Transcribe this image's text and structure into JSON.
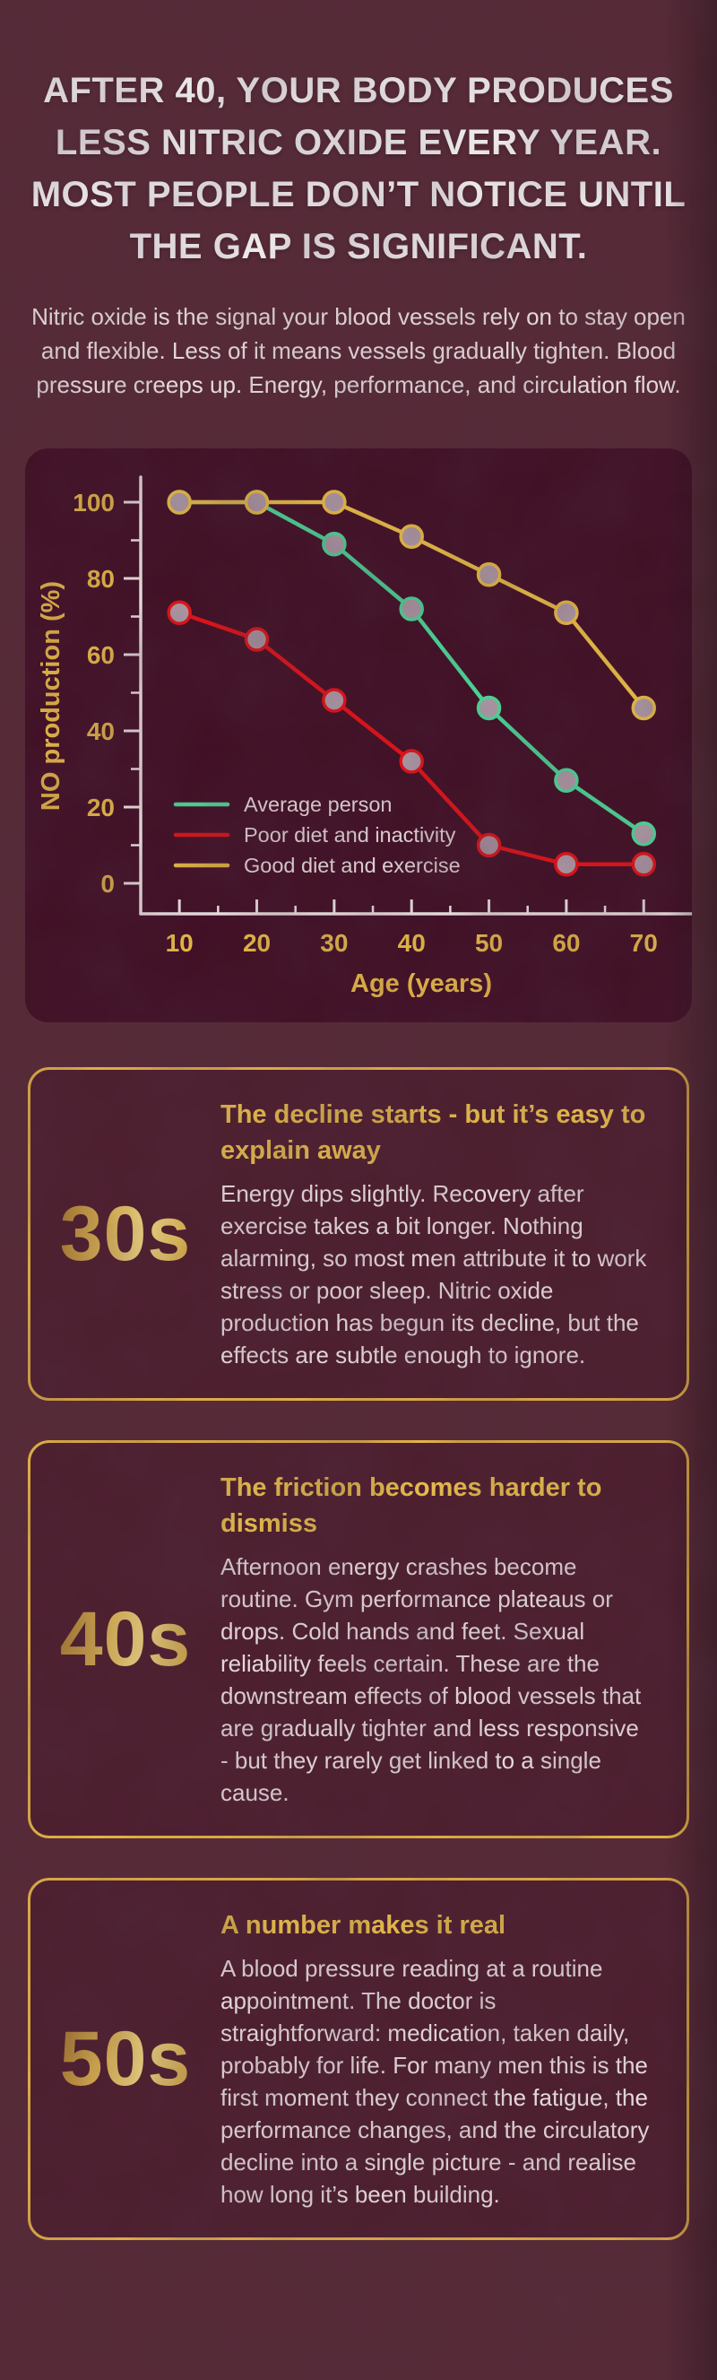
{
  "header": {
    "title": "AFTER 40, YOUR BODY PRODUCES LESS NITRIC OXIDE EVERY YEAR. MOST PEOPLE DON’T NOTICE UNTIL THE GAP IS SIGNIFICANT.",
    "subtitle": "Nitric oxide is the signal your blood vessels rely on to stay open and flexible. Less of it means vessels gradually tighten. Blood pressure creeps up. Energy, performance, and circulation flow."
  },
  "chart_data": {
    "type": "line",
    "title": "",
    "xlabel": "Age (years)",
    "ylabel": "NO production (%)",
    "x": [
      10,
      20,
      30,
      40,
      50,
      60,
      70
    ],
    "series": [
      {
        "name": "Average person",
        "color": "#4ae59e",
        "values": [
          100,
          100,
          89,
          72,
          46,
          27,
          13
        ]
      },
      {
        "name": "Poor diet and inactivity",
        "color": "#ef1013",
        "values": [
          71,
          64,
          48,
          32,
          10,
          5,
          5
        ]
      },
      {
        "name": "Good diet and exercise",
        "color": "#f6c945",
        "values": [
          100,
          100,
          100,
          91,
          81,
          71,
          46
        ]
      }
    ],
    "ylim": [
      0,
      108
    ],
    "xlim": [
      5,
      77.5
    ],
    "yticks_major": [
      0,
      20,
      40,
      60,
      80,
      100
    ],
    "yticks_minor": [
      10,
      30,
      50,
      70,
      90
    ],
    "xticks_major": [
      10,
      20,
      30,
      40,
      50,
      60,
      70
    ],
    "xticks_minor": [
      15,
      25,
      35,
      45,
      55,
      65
    ],
    "grid": false,
    "legend_position": "lower-left",
    "marker_fill": "#b4a1ad",
    "axis_color": "#f8f2f0",
    "tick_label_color": "#f2c548",
    "legend_text_color": "#f2eae8",
    "panel_bg": "#400d23"
  },
  "cards": [
    {
      "decade": "30s",
      "title": "The decline starts - but it’s easy to explain away",
      "body": "Energy dips slightly. Recovery after exercise takes a bit longer. Nothing alarming, so most men attribute it to work stress or poor sleep. Nitric oxide production has begun its decline, but the effects are subtle enough to ignore."
    },
    {
      "decade": "40s",
      "title": "The friction becomes harder to dismiss",
      "body": "Afternoon energy crashes become routine. Gym performance plateaus or drops. Cold hands and feet. Sexual reliability feels certain. These are the downstream effects of blood vessels that are gradually tighter and less responsive - but they rarely get linked to a single cause."
    },
    {
      "decade": "50s",
      "title": "A number makes it real",
      "body": "A blood pressure reading at a routine appointment. The doctor is straightforward: medication, taken daily, probably for life. For many men this is the first moment they connect the fatigue, the performance changes, and the circulatory decline into a single picture - and realise how long it’s been building."
    }
  ],
  "colors": {
    "page_background": "#572935",
    "chart_panel_background": "#400d23",
    "card_background": "#4d1d2d",
    "card_border_gold": "#f2bf47",
    "accent_gold": "#f2c548",
    "title_white": "#ffffff",
    "series_green": "#4ae59e",
    "series_red": "#ef1013",
    "series_yellow": "#f6c945",
    "marker_fill": "#b4a1ad"
  }
}
